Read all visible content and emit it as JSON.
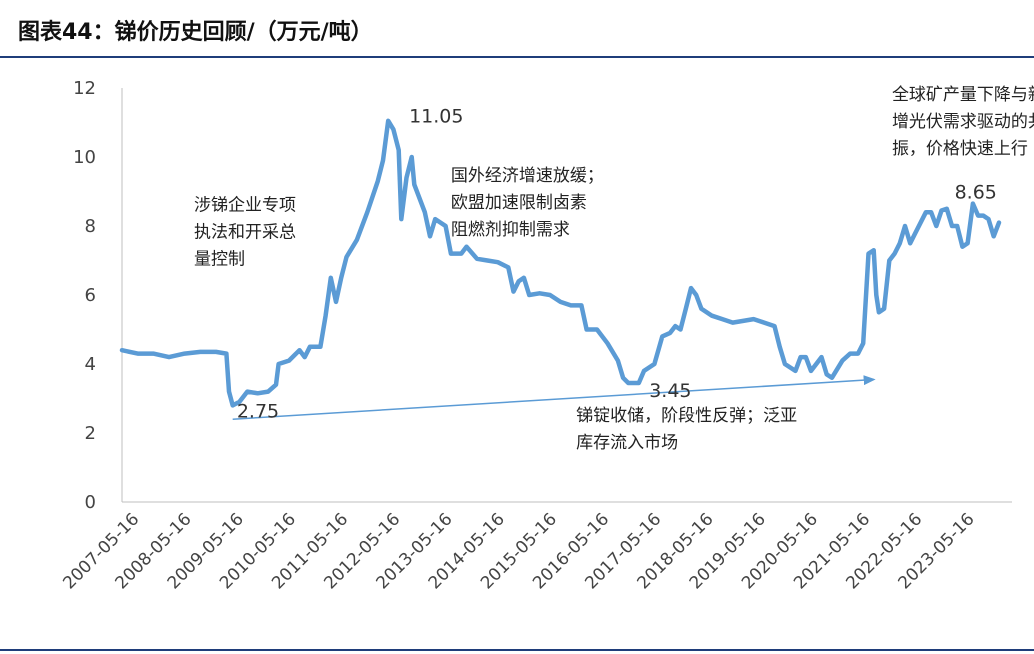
{
  "title": "图表44：锑价历史回顾/（万元/吨）",
  "chart_data": {
    "type": "line",
    "title": "图表44：锑价历史回顾/（万元/吨）",
    "xlabel": "",
    "ylabel": "",
    "ylim": [
      0,
      12
    ],
    "yticks": [
      "0",
      "2",
      "4",
      "6",
      "8",
      "10",
      "12"
    ],
    "xticks": [
      "2007-05-16",
      "2008-05-16",
      "2009-05-16",
      "2010-05-16",
      "2011-05-16",
      "2012-05-16",
      "2013-05-16",
      "2014-05-16",
      "2015-05-16",
      "2016-05-16",
      "2017-05-16",
      "2018-05-16",
      "2019-05-16",
      "2020-05-16",
      "2021-05-16",
      "2022-05-16",
      "2023-05-16"
    ],
    "series": [
      {
        "color": "#5b9bd5",
        "points": [
          [
            2007.0,
            4.4
          ],
          [
            2007.3,
            4.3
          ],
          [
            2007.6,
            4.3
          ],
          [
            2007.9,
            4.2
          ],
          [
            2008.2,
            4.3
          ],
          [
            2008.5,
            4.35
          ],
          [
            2008.8,
            4.35
          ],
          [
            2009.0,
            4.3
          ],
          [
            2009.05,
            3.2
          ],
          [
            2009.12,
            2.8
          ],
          [
            2009.25,
            2.9
          ],
          [
            2009.4,
            3.2
          ],
          [
            2009.6,
            3.15
          ],
          [
            2009.8,
            3.2
          ],
          [
            2009.95,
            3.4
          ],
          [
            2010.0,
            4.0
          ],
          [
            2010.2,
            4.1
          ],
          [
            2010.4,
            4.4
          ],
          [
            2010.5,
            4.2
          ],
          [
            2010.6,
            4.5
          ],
          [
            2010.8,
            4.5
          ],
          [
            2010.9,
            5.4
          ],
          [
            2011.0,
            6.5
          ],
          [
            2011.1,
            5.8
          ],
          [
            2011.2,
            6.5
          ],
          [
            2011.3,
            7.1
          ],
          [
            2011.5,
            7.6
          ],
          [
            2011.7,
            8.4
          ],
          [
            2011.9,
            9.3
          ],
          [
            2012.0,
            9.9
          ],
          [
            2012.1,
            11.05
          ],
          [
            2012.2,
            10.8
          ],
          [
            2012.3,
            10.2
          ],
          [
            2012.35,
            8.2
          ],
          [
            2012.45,
            9.4
          ],
          [
            2012.55,
            10.0
          ],
          [
            2012.6,
            9.2
          ],
          [
            2012.8,
            8.4
          ],
          [
            2012.9,
            7.7
          ],
          [
            2013.0,
            8.2
          ],
          [
            2013.2,
            8.0
          ],
          [
            2013.3,
            7.2
          ],
          [
            2013.5,
            7.2
          ],
          [
            2013.6,
            7.4
          ],
          [
            2013.8,
            7.05
          ],
          [
            2014.0,
            7.0
          ],
          [
            2014.2,
            6.95
          ],
          [
            2014.4,
            6.8
          ],
          [
            2014.5,
            6.1
          ],
          [
            2014.6,
            6.4
          ],
          [
            2014.7,
            6.5
          ],
          [
            2014.8,
            6.0
          ],
          [
            2015.0,
            6.05
          ],
          [
            2015.2,
            6.0
          ],
          [
            2015.4,
            5.8
          ],
          [
            2015.6,
            5.7
          ],
          [
            2015.8,
            5.7
          ],
          [
            2015.9,
            5.0
          ],
          [
            2016.1,
            5.0
          ],
          [
            2016.3,
            4.6
          ],
          [
            2016.5,
            4.1
          ],
          [
            2016.6,
            3.6
          ],
          [
            2016.7,
            3.45
          ],
          [
            2016.9,
            3.45
          ],
          [
            2017.0,
            3.8
          ],
          [
            2017.2,
            4.0
          ],
          [
            2017.35,
            4.8
          ],
          [
            2017.5,
            4.9
          ],
          [
            2017.6,
            5.1
          ],
          [
            2017.7,
            5.0
          ],
          [
            2017.8,
            5.6
          ],
          [
            2017.9,
            6.2
          ],
          [
            2018.0,
            6.0
          ],
          [
            2018.1,
            5.6
          ],
          [
            2018.3,
            5.4
          ],
          [
            2018.5,
            5.3
          ],
          [
            2018.7,
            5.2
          ],
          [
            2018.9,
            5.25
          ],
          [
            2019.1,
            5.3
          ],
          [
            2019.3,
            5.2
          ],
          [
            2019.5,
            5.1
          ],
          [
            2019.6,
            4.5
          ],
          [
            2019.7,
            4.0
          ],
          [
            2019.9,
            3.8
          ],
          [
            2020.0,
            4.2
          ],
          [
            2020.1,
            4.2
          ],
          [
            2020.2,
            3.8
          ],
          [
            2020.4,
            4.2
          ],
          [
            2020.5,
            3.7
          ],
          [
            2020.6,
            3.6
          ],
          [
            2020.8,
            4.1
          ],
          [
            2020.95,
            4.3
          ],
          [
            2021.1,
            4.3
          ],
          [
            2021.2,
            4.6
          ],
          [
            2021.3,
            7.2
          ],
          [
            2021.4,
            7.3
          ],
          [
            2021.45,
            6.0
          ],
          [
            2021.5,
            5.5
          ],
          [
            2021.6,
            5.6
          ],
          [
            2021.7,
            7.0
          ],
          [
            2021.8,
            7.2
          ],
          [
            2021.9,
            7.5
          ],
          [
            2022.0,
            8.0
          ],
          [
            2022.1,
            7.5
          ],
          [
            2022.2,
            7.8
          ],
          [
            2022.4,
            8.4
          ],
          [
            2022.5,
            8.4
          ],
          [
            2022.6,
            8.0
          ],
          [
            2022.7,
            8.45
          ],
          [
            2022.8,
            8.5
          ],
          [
            2022.9,
            8.0
          ],
          [
            2023.0,
            8.0
          ],
          [
            2023.1,
            7.4
          ],
          [
            2023.2,
            7.5
          ],
          [
            2023.3,
            8.65
          ],
          [
            2023.4,
            8.3
          ],
          [
            2023.5,
            8.3
          ],
          [
            2023.6,
            8.2
          ],
          [
            2023.7,
            7.7
          ],
          [
            2023.8,
            8.1
          ]
        ]
      }
    ],
    "trend_arrow": {
      "from": [
        2009.12,
        2.4
      ],
      "to": [
        2021.4,
        3.55
      ],
      "color": "#5b9bd5"
    },
    "annotations": [
      {
        "lines": [
          "涉锑企业专项",
          "执法和开采总",
          "量控制"
        ],
        "x": 2008.38,
        "y": 8.45
      },
      {
        "lines": [
          "国外经济增速放缓；",
          "欧盟加速限制卤素",
          "阻燃剂抑制需求"
        ],
        "x": 2013.3,
        "y": 9.3
      },
      {
        "lines": [
          "锑锭收储，阶段性反弹；泛亚",
          "库存流入市场"
        ],
        "x": 2015.7,
        "y": 2.35
      },
      {
        "lines": [
          "全球矿产量下降与新",
          "增光伏需求驱动的共",
          "振，价格快速上行"
        ],
        "x": 2021.75,
        "y": 11.65
      }
    ],
    "value_labels": [
      {
        "text": "11.05",
        "x": 2012.5,
        "y": 11.0
      },
      {
        "text": "2.75",
        "x": 2009.2,
        "y": 2.45
      },
      {
        "text": "3.45",
        "x": 2017.1,
        "y": 3.05
      },
      {
        "text": "8.65",
        "x": 2022.95,
        "y": 8.8
      }
    ]
  }
}
